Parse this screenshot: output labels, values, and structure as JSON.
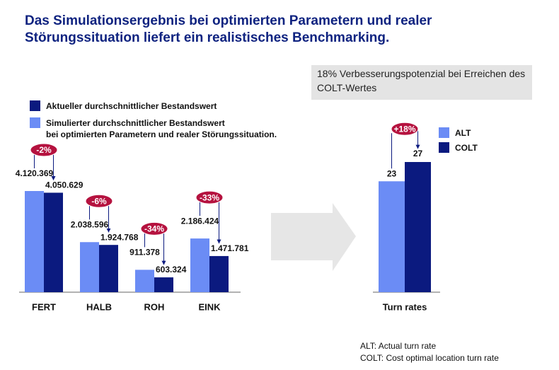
{
  "title": "Das Simulationsergebnis bei optimierten Parametern und realer Störungssituation liefert ein realistisches Benchmarking.",
  "callout": "18% Verbesserungspotenzial bei Erreichen des COLT-Wertes",
  "notes": [
    "ALT: Actual turn rate",
    "COLT: Cost optimal location turn rate"
  ],
  "chart_data": [
    {
      "type": "bar",
      "categories": [
        "FERT",
        "HALB",
        "ROH",
        "EINK"
      ],
      "series": [
        {
          "name": "Aktueller durchschnittlicher Bestandswert",
          "color": "#0b1a7f",
          "values": [
            4050629,
            1924768,
            603324,
            1471781
          ],
          "value_labels": [
            "4.050.629",
            "1.924.768",
            "603.324",
            "1.471.781"
          ]
        },
        {
          "name": "Simulierter durchschnittlicher Bestandswert\nbei optimierten Parametern und realer Störungssituation.",
          "color": "#6b8cf5",
          "values": [
            4120369,
            2038596,
            911378,
            2186424
          ],
          "value_labels": [
            "4.120.369",
            "2.038.596",
            "911.378",
            "2.186.424"
          ]
        }
      ],
      "changes": [
        "-2%",
        "-6%",
        "-34%",
        "-33%"
      ]
    },
    {
      "type": "bar",
      "categories": [
        "Turn rates"
      ],
      "series": [
        {
          "name": "ALT",
          "color": "#6b8cf5",
          "values": [
            23
          ]
        },
        {
          "name": "COLT",
          "color": "#0b1a7f",
          "values": [
            27
          ]
        }
      ],
      "changes": [
        "+18%"
      ]
    }
  ]
}
